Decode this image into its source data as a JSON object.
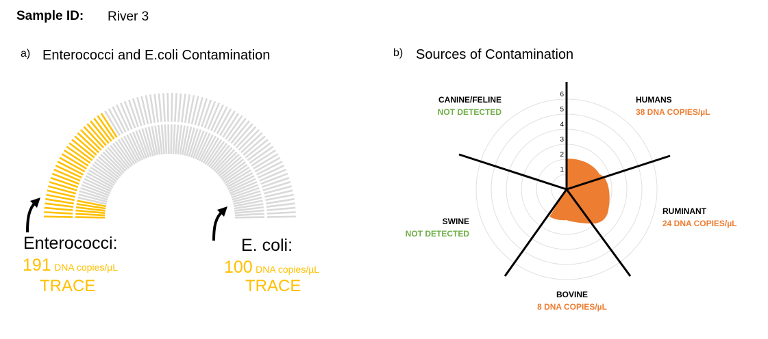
{
  "sample": {
    "label": "Sample ID:",
    "value": "River 3"
  },
  "section_a": {
    "letter": "a)",
    "title": "Enterococci and E.coli Contamination"
  },
  "section_b": {
    "letter": "b)",
    "title": "Sources of Contamination"
  },
  "colors": {
    "yellow": "#FFC000",
    "gray": "#D9D9D9",
    "orange": "#ED7D31",
    "green": "#70AD47"
  },
  "gauges": {
    "enterococci": {
      "name": "Enterococci:",
      "value": "191",
      "unit": "DNA copies/µL",
      "level": "TRACE"
    },
    "ecoli": {
      "name": "E. coli:",
      "value": "100",
      "unit": "DNA copies/µL",
      "level": "TRACE"
    }
  },
  "radar": {
    "ticks": [
      "1",
      "2",
      "3",
      "4",
      "5",
      "6"
    ],
    "sources": {
      "canine_feline": {
        "name": "CANINE/FELINE",
        "status": "NOT DETECTED"
      },
      "humans": {
        "name": "HUMANS",
        "status": "38 DNA COPIES/µL"
      },
      "ruminant": {
        "name": "RUMINANT",
        "status": "24 DNA COPIES/µL"
      },
      "bovine": {
        "name": "BOVINE",
        "status": "8 DNA COPIES/µL"
      },
      "swine": {
        "name": "SWINE",
        "status": "NOT DETECTED"
      }
    }
  },
  "chart_data": [
    {
      "type": "gauge",
      "title": "Enterococci and E.coli Contamination",
      "series": [
        {
          "name": "Enterococci",
          "value": 191,
          "unit": "DNA copies/µL",
          "level": "TRACE",
          "band": "outer",
          "fill_fraction": 0.32
        },
        {
          "name": "E. coli",
          "value": 100,
          "unit": "DNA copies/µL",
          "level": "TRACE",
          "band": "inner",
          "fill_fraction": 0.06
        }
      ]
    },
    {
      "type": "radar",
      "title": "Sources of Contamination",
      "categories": [
        "HUMANS",
        "RUMINANT",
        "BOVINE",
        "SWINE",
        "CANINE/FELINE"
      ],
      "values_dna_copies_per_uL": [
        38,
        24,
        8,
        0,
        0
      ],
      "status": [
        "38 DNA COPIES/µL",
        "24 DNA COPIES/µL",
        "8 DNA COPIES/µL",
        "NOT DETECTED",
        "NOT DETECTED"
      ],
      "radial_ticks": [
        1,
        2,
        3,
        4,
        5,
        6
      ],
      "rlim": [
        0,
        6
      ]
    }
  ]
}
